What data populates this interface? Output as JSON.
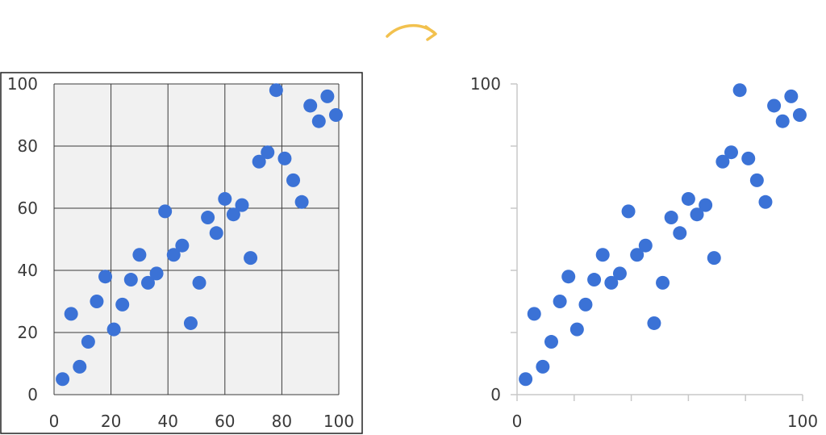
{
  "transition": {
    "arrow_icon": "curved-arrow-right-icon",
    "color": "#f2c14e"
  },
  "colors": {
    "point": "#3b72d6",
    "left_bg": "#f1f1f1"
  },
  "chart_data": [
    {
      "id": "left",
      "type": "scatter",
      "title": "",
      "xlabel": "",
      "ylabel": "",
      "xlim": [
        0,
        100
      ],
      "ylim": [
        0,
        100
      ],
      "grid": true,
      "xticks": [
        "0",
        "20",
        "40",
        "60",
        "80",
        "100"
      ],
      "yticks": [
        "0",
        "20",
        "40",
        "60",
        "80",
        "100"
      ],
      "points": [
        [
          3,
          5
        ],
        [
          6,
          26
        ],
        [
          9,
          9
        ],
        [
          12,
          17
        ],
        [
          15,
          30
        ],
        [
          18,
          38
        ],
        [
          21,
          21
        ],
        [
          24,
          29
        ],
        [
          27,
          37
        ],
        [
          30,
          45
        ],
        [
          33,
          36
        ],
        [
          36,
          39
        ],
        [
          39,
          59
        ],
        [
          42,
          45
        ],
        [
          45,
          48
        ],
        [
          48,
          23
        ],
        [
          51,
          36
        ],
        [
          54,
          57
        ],
        [
          57,
          52
        ],
        [
          60,
          63
        ],
        [
          63,
          58
        ],
        [
          66,
          61
        ],
        [
          69,
          44
        ],
        [
          72,
          75
        ],
        [
          75,
          78
        ],
        [
          78,
          98
        ],
        [
          81,
          76
        ],
        [
          84,
          69
        ],
        [
          87,
          62
        ],
        [
          90,
          93
        ],
        [
          93,
          88
        ],
        [
          96,
          96
        ],
        [
          99,
          90
        ]
      ]
    },
    {
      "id": "right",
      "type": "scatter",
      "title": "",
      "xlabel": "",
      "ylabel": "",
      "xlim": [
        0,
        100
      ],
      "ylim": [
        0,
        100
      ],
      "grid": false,
      "xticks": [
        "0",
        "",
        "",
        "",
        "",
        "100"
      ],
      "yticks": [
        "0",
        "",
        "",
        "",
        "",
        "100"
      ],
      "points": [
        [
          3,
          5
        ],
        [
          6,
          26
        ],
        [
          9,
          9
        ],
        [
          12,
          17
        ],
        [
          15,
          30
        ],
        [
          18,
          38
        ],
        [
          21,
          21
        ],
        [
          24,
          29
        ],
        [
          27,
          37
        ],
        [
          30,
          45
        ],
        [
          33,
          36
        ],
        [
          36,
          39
        ],
        [
          39,
          59
        ],
        [
          42,
          45
        ],
        [
          45,
          48
        ],
        [
          48,
          23
        ],
        [
          51,
          36
        ],
        [
          54,
          57
        ],
        [
          57,
          52
        ],
        [
          60,
          63
        ],
        [
          63,
          58
        ],
        [
          66,
          61
        ],
        [
          69,
          44
        ],
        [
          72,
          75
        ],
        [
          75,
          78
        ],
        [
          78,
          98
        ],
        [
          81,
          76
        ],
        [
          84,
          69
        ],
        [
          87,
          62
        ],
        [
          90,
          93
        ],
        [
          93,
          88
        ],
        [
          96,
          96
        ],
        [
          99,
          90
        ]
      ]
    }
  ]
}
